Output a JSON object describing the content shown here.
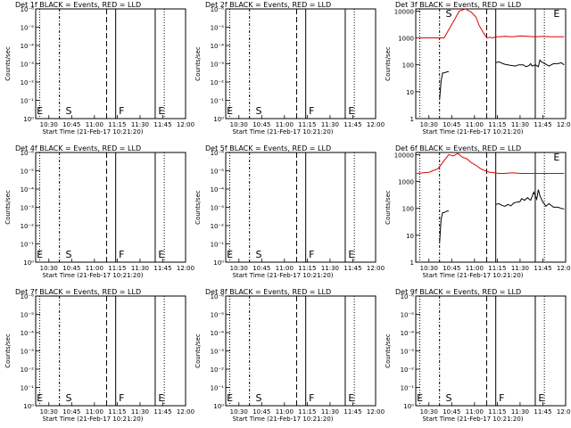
{
  "colors": {
    "events": "#000000",
    "lld": "#e00000",
    "background": "#ffffff"
  },
  "x_ticks": [
    "10:30",
    "10:45",
    "11:00",
    "11:15",
    "11:30",
    "11:45",
    "12:00"
  ],
  "xlabel": "Start Time (21-Feb-17 10:21:20)",
  "ylabel": "Counts/sec",
  "log_ticks_empty": [
    "10⁻⁶",
    "10⁻⁵",
    "10⁻⁴",
    "10⁻³",
    "10⁻²",
    "10⁻¹",
    "10⁰"
  ],
  "log_ticks_data": [
    "10000",
    "1000",
    "100",
    "10",
    "1"
  ],
  "chart_data": [
    {
      "type": "line",
      "title": "Det 1f BLACK = Events, RED = LLD",
      "yscale": "log",
      "xlim": [
        "10:21:20",
        "12:00"
      ],
      "ylim": [
        1e-06,
        1
      ],
      "markers": [
        "E",
        "S",
        "F",
        "E"
      ],
      "series": []
    },
    {
      "type": "line",
      "title": "Det 2f BLACK = Events, RED = LLD",
      "yscale": "log",
      "xlim": [
        "10:21:20",
        "12:00"
      ],
      "ylim": [
        1e-06,
        1
      ],
      "markers": [
        "E",
        "S",
        "F",
        "E"
      ],
      "series": []
    },
    {
      "type": "line",
      "title": "Det 3f BLACK = Events, RED = LLD",
      "yscale": "log",
      "xlim": [
        "10:21:20",
        "12:00"
      ],
      "ylim": [
        1,
        12000
      ],
      "markers": [
        "S",
        "E"
      ],
      "series": [
        {
          "color": "red",
          "x": [
            "10:22",
            "10:40",
            "10:43",
            "10:47",
            "10:50",
            "10:54",
            "10:58",
            "11:01",
            "11:03",
            "11:06",
            "11:08",
            "11:10",
            "11:12",
            "11:14",
            "11:16",
            "11:20",
            "11:25",
            "11:30",
            "11:35",
            "11:40",
            "11:45",
            "11:50",
            "11:55",
            "11:59"
          ],
          "values": [
            1000,
            1000,
            2000,
            5000,
            10000,
            12000,
            9000,
            6000,
            3000,
            1500,
            1000,
            1050,
            1000,
            1100,
            1100,
            1150,
            1100,
            1200,
            1150,
            1100,
            1150,
            1100,
            1100,
            1100
          ]
        },
        {
          "color": "black",
          "x": [
            "10:37",
            "10:38",
            "10:39",
            "10:40",
            "10:42",
            "10:43",
            "11:14",
            "11:16",
            "11:18",
            "11:20",
            "11:22",
            "11:24",
            "11:27",
            "11:29",
            "11:32",
            "11:34",
            "11:36",
            "11:37",
            "11:38",
            "11:40",
            "11:42",
            "11:43",
            "11:44",
            "11:47",
            "11:49",
            "11:52",
            "11:55",
            "11:57",
            "11:59"
          ],
          "values": [
            5,
            25,
            50,
            50,
            55,
            55,
            120,
            130,
            115,
            105,
            100,
            95,
            90,
            100,
            100,
            85,
            95,
            110,
            90,
            100,
            85,
            150,
            130,
            105,
            90,
            110,
            110,
            120,
            100
          ]
        }
      ]
    },
    {
      "type": "line",
      "title": "Det 4f BLACK = Events, RED = LLD",
      "yscale": "log",
      "xlim": [
        "10:21:20",
        "12:00"
      ],
      "ylim": [
        1e-06,
        1
      ],
      "markers": [
        "E",
        "S",
        "F",
        "E"
      ],
      "series": []
    },
    {
      "type": "line",
      "title": "Det 5f BLACK = Events, RED = LLD",
      "yscale": "log",
      "xlim": [
        "10:21:20",
        "12:00"
      ],
      "ylim": [
        1e-06,
        1
      ],
      "markers": [
        "E",
        "S",
        "F",
        "E"
      ],
      "series": []
    },
    {
      "type": "line",
      "title": "Det 6f BLACK = Events, RED = LLD",
      "yscale": "log",
      "xlim": [
        "10:21:20",
        "12:00"
      ],
      "ylim": [
        1,
        12000
      ],
      "markers": [
        "E"
      ],
      "series": [
        {
          "color": "red",
          "x": [
            "10:22",
            "10:30",
            "10:36",
            "10:40",
            "10:43",
            "10:46",
            "10:49",
            "10:52",
            "10:55",
            "10:58",
            "11:01",
            "11:04",
            "11:07",
            "11:10",
            "11:13",
            "11:16",
            "11:20",
            "11:25",
            "11:30",
            "11:35",
            "11:40",
            "11:45",
            "11:50",
            "11:55",
            "11:59"
          ],
          "values": [
            2000,
            2200,
            3000,
            6000,
            10000,
            9000,
            11000,
            8000,
            7000,
            5000,
            4000,
            3000,
            2500,
            2200,
            2100,
            2000,
            2000,
            2100,
            2000,
            2000,
            2000,
            2000,
            2000,
            2000,
            2000
          ]
        },
        {
          "color": "black",
          "x": [
            "10:37",
            "10:38",
            "10:39",
            "10:40",
            "10:42",
            "10:43",
            "11:14",
            "11:16",
            "11:18",
            "11:20",
            "11:22",
            "11:24",
            "11:26",
            "11:28",
            "11:30",
            "11:31",
            "11:33",
            "11:35",
            "11:36",
            "11:37",
            "11:39",
            "11:41",
            "11:42",
            "11:43",
            "11:45",
            "11:47",
            "11:49",
            "11:52",
            "11:55",
            "11:57",
            "11:59"
          ],
          "values": [
            5,
            40,
            70,
            70,
            80,
            80,
            140,
            150,
            130,
            120,
            140,
            125,
            160,
            170,
            180,
            230,
            200,
            250,
            220,
            200,
            400,
            220,
            500,
            300,
            170,
            120,
            150,
            110,
            110,
            100,
            95
          ]
        }
      ]
    },
    {
      "type": "line",
      "title": "Det 7f BLACK = Events, RED = LLD",
      "yscale": "log",
      "xlim": [
        "10:21:20",
        "12:00"
      ],
      "ylim": [
        1e-06,
        1
      ],
      "markers": [
        "E",
        "S",
        "F",
        "E"
      ],
      "series": []
    },
    {
      "type": "line",
      "title": "Det 8f BLACK = Events, RED = LLD",
      "yscale": "log",
      "xlim": [
        "10:21:20",
        "12:00"
      ],
      "ylim": [
        1e-06,
        1
      ],
      "markers": [
        "E",
        "S",
        "F",
        "E"
      ],
      "series": []
    },
    {
      "type": "line",
      "title": "Det 9f BLACK = Events, RED = LLD",
      "yscale": "log",
      "xlim": [
        "10:21:20",
        "12:00"
      ],
      "ylim": [
        1e-06,
        1
      ],
      "markers": [
        "E",
        "S",
        "F",
        "E"
      ],
      "series": []
    }
  ]
}
